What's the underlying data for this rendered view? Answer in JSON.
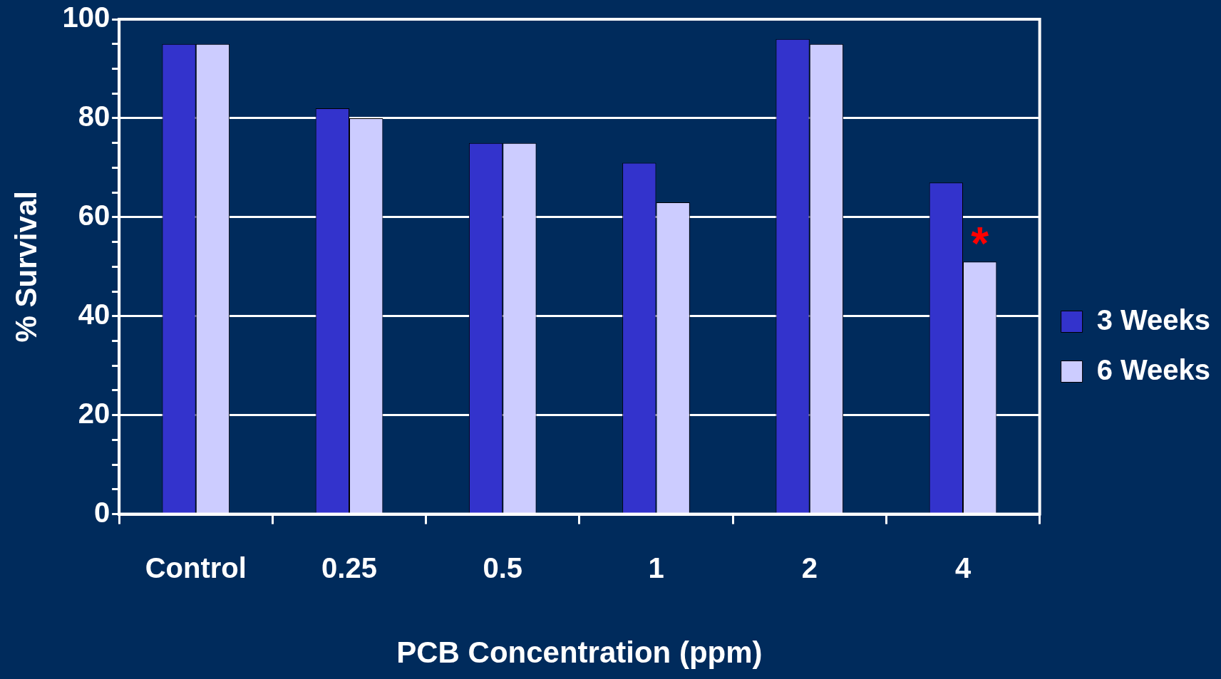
{
  "chart_data": {
    "type": "bar",
    "xlabel": "PCB Concentration (ppm)",
    "ylabel": "% Survival",
    "categories": [
      "Control",
      "0.25",
      "0.5",
      "1",
      "2",
      "4"
    ],
    "series": [
      {
        "name": "3 Weeks",
        "color": "#3333cc",
        "values": [
          95,
          82,
          75,
          71,
          96,
          67
        ]
      },
      {
        "name": "6 Weeks",
        "color": "#ccccff",
        "values": [
          95,
          80,
          75,
          63,
          95,
          51
        ]
      }
    ],
    "ylim": [
      0,
      100
    ],
    "yticks": [
      0,
      {
        "value": 5,
        "label": null
      },
      {
        "value": 10,
        "label": null
      },
      {
        "value": 15,
        "label": null
      },
      20,
      {
        "value": 25,
        "label": null
      },
      {
        "value": 30,
        "label": null
      },
      {
        "value": 35,
        "label": null
      },
      40,
      {
        "value": 45,
        "label": null
      },
      {
        "value": 50,
        "label": null
      },
      {
        "value": 55,
        "label": null
      },
      60,
      {
        "value": 65,
        "label": null
      },
      {
        "value": 70,
        "label": null
      },
      {
        "value": 75,
        "label": null
      },
      80,
      {
        "value": 85,
        "label": null
      },
      {
        "value": 90,
        "label": null
      },
      {
        "value": 95,
        "label": null
      },
      100
    ],
    "grid": "y",
    "legend": "right",
    "annotations": [
      {
        "text": "*",
        "x": "4",
        "y": 56
      }
    ]
  }
}
